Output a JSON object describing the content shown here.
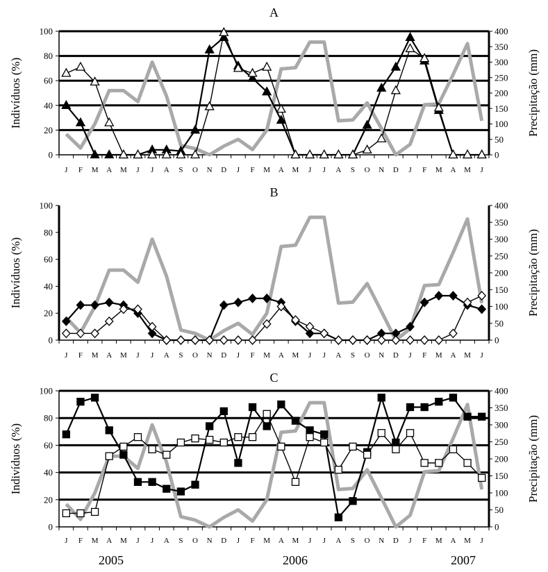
{
  "months": [
    "J",
    "F",
    "M",
    "A",
    "M",
    "J",
    "J",
    "A",
    "S",
    "O",
    "N",
    "D",
    "J",
    "F",
    "M",
    "A",
    "M",
    "J",
    "J",
    "A",
    "S",
    "O",
    "N",
    "D",
    "J",
    "F",
    "M",
    "A",
    "M",
    "J"
  ],
  "years": [
    "2005",
    "2006",
    "2007"
  ],
  "chart_data": [
    {
      "panel": "A",
      "type": "line",
      "ylabel": "Indivíduos (%)",
      "y2label": "Precipitação (mm)",
      "ylim": [
        0,
        100
      ],
      "y2lim": [
        0,
        400
      ],
      "yticks": [
        0,
        20,
        40,
        60,
        80,
        100
      ],
      "y2ticks": [
        0,
        50,
        100,
        150,
        200,
        250,
        300,
        350,
        400
      ],
      "grid": "heavy horizontal lines at 20, 40, 60, 80, 100",
      "series": [
        {
          "marker": "filled-triangle",
          "color": "#000000",
          "values": [
            40,
            26,
            0,
            0,
            0,
            0,
            4,
            4,
            3,
            20,
            85,
            95,
            72,
            62,
            51,
            28,
            0,
            0,
            0,
            0,
            0,
            24,
            54,
            71,
            95,
            76,
            36,
            0,
            0,
            0
          ]
        },
        {
          "marker": "open-triangle",
          "color": "#000000",
          "values": [
            66,
            71,
            59,
            26,
            0,
            0,
            0,
            0,
            0,
            0,
            39,
            99,
            70,
            66,
            71,
            37,
            0,
            0,
            0,
            0,
            0,
            4,
            13,
            52,
            86,
            78,
            38,
            0,
            0,
            0
          ]
        },
        {
          "axis": "right",
          "color": "#a9a9a9",
          "values": [
            67,
            22,
            100,
            208,
            208,
            172,
            300,
            190,
            30,
            20,
            0,
            28,
            50,
            17,
            80,
            278,
            282,
            365,
            365,
            110,
            113,
            168,
            85,
            0,
            34,
            162,
            165,
            260,
            360,
            110
          ]
        }
      ]
    },
    {
      "panel": "B",
      "type": "line",
      "ylabel": "Indivíduos (%)",
      "y2label": "Precipitação (mm)",
      "ylim": [
        0,
        100
      ],
      "y2lim": [
        0,
        400
      ],
      "yticks": [
        0,
        20,
        40,
        60,
        80,
        100
      ],
      "y2ticks": [
        0,
        50,
        100,
        150,
        200,
        250,
        300,
        350,
        400
      ],
      "grid": "none",
      "series": [
        {
          "marker": "filled-diamond",
          "color": "#000000",
          "values": [
            14,
            26,
            26,
            28,
            26,
            20,
            5,
            0,
            0,
            0,
            0,
            26,
            28,
            31,
            31,
            28,
            14,
            5,
            5,
            0,
            0,
            0,
            5,
            5,
            10,
            28,
            33,
            33,
            26,
            23
          ]
        },
        {
          "marker": "open-diamond",
          "color": "#000000",
          "values": [
            5,
            5,
            5,
            14,
            23,
            23,
            10,
            0,
            0,
            0,
            0,
            0,
            0,
            0,
            12,
            25,
            15,
            10,
            5,
            0,
            0,
            0,
            0,
            0,
            0,
            0,
            0,
            5,
            28,
            33
          ]
        },
        {
          "axis": "right",
          "color": "#a9a9a9",
          "values": [
            67,
            22,
            100,
            208,
            208,
            172,
            300,
            190,
            30,
            20,
            0,
            28,
            50,
            17,
            80,
            278,
            282,
            365,
            365,
            110,
            113,
            168,
            85,
            0,
            34,
            162,
            165,
            260,
            360,
            110
          ]
        }
      ]
    },
    {
      "panel": "C",
      "type": "line",
      "ylabel": "Indivíduos (%)",
      "y2label": "Precipitação (mm)",
      "ylim": [
        0,
        100
      ],
      "y2lim": [
        0,
        400
      ],
      "yticks": [
        0,
        20,
        40,
        60,
        80,
        100
      ],
      "y2ticks": [
        0,
        50,
        100,
        150,
        200,
        250,
        300,
        350,
        400
      ],
      "grid": "heavy horizontal lines at 20, 40, 60, 80, 100",
      "series": [
        {
          "marker": "filled-square",
          "color": "#000000",
          "values": [
            68,
            92,
            95,
            71,
            53,
            33,
            33,
            28,
            26,
            31,
            74,
            85,
            47,
            88,
            74,
            90,
            78,
            71,
            68,
            7,
            19,
            55,
            95,
            62,
            88,
            88,
            92,
            95,
            81,
            81
          ]
        },
        {
          "marker": "open-square",
          "color": "#000000",
          "values": [
            10,
            10,
            11,
            52,
            59,
            66,
            57,
            53,
            62,
            65,
            64,
            62,
            66,
            66,
            83,
            59,
            33,
            66,
            62,
            42,
            59,
            53,
            69,
            57,
            69,
            47,
            47,
            57,
            47,
            36
          ]
        },
        {
          "axis": "right",
          "color": "#a9a9a9",
          "values": [
            67,
            22,
            100,
            208,
            208,
            172,
            300,
            190,
            30,
            20,
            0,
            28,
            50,
            17,
            80,
            278,
            282,
            365,
            365,
            110,
            113,
            168,
            85,
            0,
            34,
            162,
            165,
            260,
            360,
            110
          ]
        }
      ]
    }
  ]
}
